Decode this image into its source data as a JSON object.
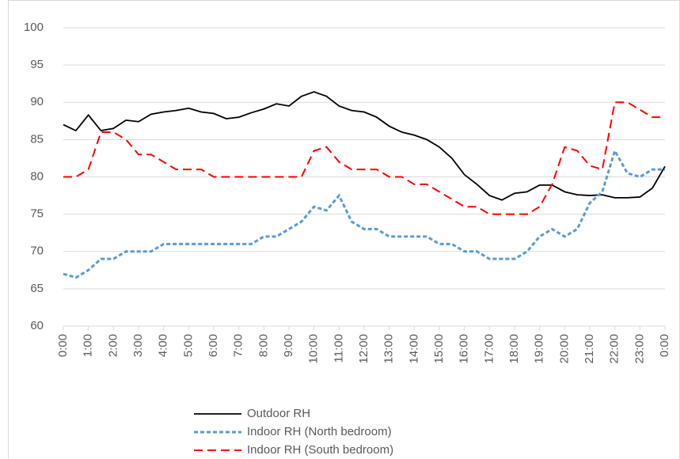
{
  "chart_data": {
    "type": "line",
    "x": [
      0,
      0.5,
      1,
      1.5,
      2,
      2.5,
      3,
      3.5,
      4,
      4.5,
      5,
      5.5,
      6,
      6.5,
      7,
      7.5,
      8,
      8.5,
      9,
      9.5,
      10,
      10.5,
      11,
      11.5,
      12,
      12.5,
      13,
      13.5,
      14,
      14.5,
      15,
      15.5,
      16,
      16.5,
      17,
      17.5,
      18,
      18.5,
      19,
      19.5,
      20,
      20.5,
      21,
      21.5,
      22,
      22.5,
      23,
      23.5,
      24
    ],
    "series": [
      {
        "name": "Outdoor RH",
        "color": "#000000",
        "values": [
          87,
          86.2,
          88.3,
          86.2,
          86.5,
          87.6,
          87.4,
          88.4,
          88.7,
          88.9,
          89.2,
          88.7,
          88.5,
          87.8,
          88,
          88.6,
          89.1,
          89.8,
          89.5,
          90.8,
          91.4,
          90.8,
          89.5,
          88.9,
          88.7,
          88,
          86.8,
          86,
          85.6,
          85,
          84,
          82.5,
          80.3,
          79,
          77.5,
          76.9,
          77.8,
          78,
          78.9,
          78.9,
          78,
          77.6,
          77.5,
          77.6,
          77.2,
          77.2,
          77.3,
          78.5,
          81.4
        ]
      },
      {
        "name": "Indoor RH (North bedroom)",
        "color": "#5b9bd5",
        "values": [
          67,
          66.5,
          67.5,
          69,
          69,
          70,
          70,
          70,
          71,
          71,
          71,
          71,
          71,
          71,
          71,
          71,
          72,
          72,
          73,
          74,
          76,
          75.5,
          77.5,
          74,
          73,
          73,
          72,
          72,
          72,
          72,
          71,
          71,
          70,
          70,
          69,
          69,
          69,
          70,
          72,
          73,
          72,
          73,
          76.5,
          78,
          83.5,
          80.5,
          80,
          81,
          81
        ]
      },
      {
        "name": "Indoor RH (South bedroom)",
        "color": "#ff0000",
        "values": [
          80,
          80,
          81,
          86,
          86,
          85,
          83,
          83,
          82,
          81,
          81,
          81,
          80,
          80,
          80,
          80,
          80,
          80,
          80,
          80,
          83.5,
          84,
          82,
          81,
          81,
          81,
          80,
          80,
          79,
          79,
          78,
          77,
          76,
          76,
          75,
          75,
          75,
          75,
          76,
          79,
          84,
          83.5,
          81.5,
          81,
          90,
          90,
          89,
          88,
          88
        ]
      }
    ],
    "xlim": [
      0,
      24
    ],
    "xticks": [
      {
        "value": 0,
        "label": "0:00"
      },
      {
        "value": 1,
        "label": "1:00"
      },
      {
        "value": 2,
        "label": "2:00"
      },
      {
        "value": 3,
        "label": "3:00"
      },
      {
        "value": 4,
        "label": "4:00"
      },
      {
        "value": 5,
        "label": "5:00"
      },
      {
        "value": 6,
        "label": "6:00"
      },
      {
        "value": 7,
        "label": "7:00"
      },
      {
        "value": 8,
        "label": "8:00"
      },
      {
        "value": 9,
        "label": "9:00"
      },
      {
        "value": 10,
        "label": "10:00"
      },
      {
        "value": 11,
        "label": "11:00"
      },
      {
        "value": 12,
        "label": "12:00"
      },
      {
        "value": 13,
        "label": "13:00"
      },
      {
        "value": 14,
        "label": "14:00"
      },
      {
        "value": 15,
        "label": "15:00"
      },
      {
        "value": 16,
        "label": "16:00"
      },
      {
        "value": 17,
        "label": "17:00"
      },
      {
        "value": 18,
        "label": "18:00"
      },
      {
        "value": 19,
        "label": "19:00"
      },
      {
        "value": 20,
        "label": "20:00"
      },
      {
        "value": 21,
        "label": "21:00"
      },
      {
        "value": 22,
        "label": "22:00"
      },
      {
        "value": 23,
        "label": "23:00"
      },
      {
        "value": 24,
        "label": "0:00"
      }
    ],
    "ylim": [
      60,
      100
    ],
    "yticks": [
      60,
      65,
      70,
      75,
      80,
      85,
      90,
      95,
      100
    ],
    "grid": true,
    "legend": "bottom"
  }
}
